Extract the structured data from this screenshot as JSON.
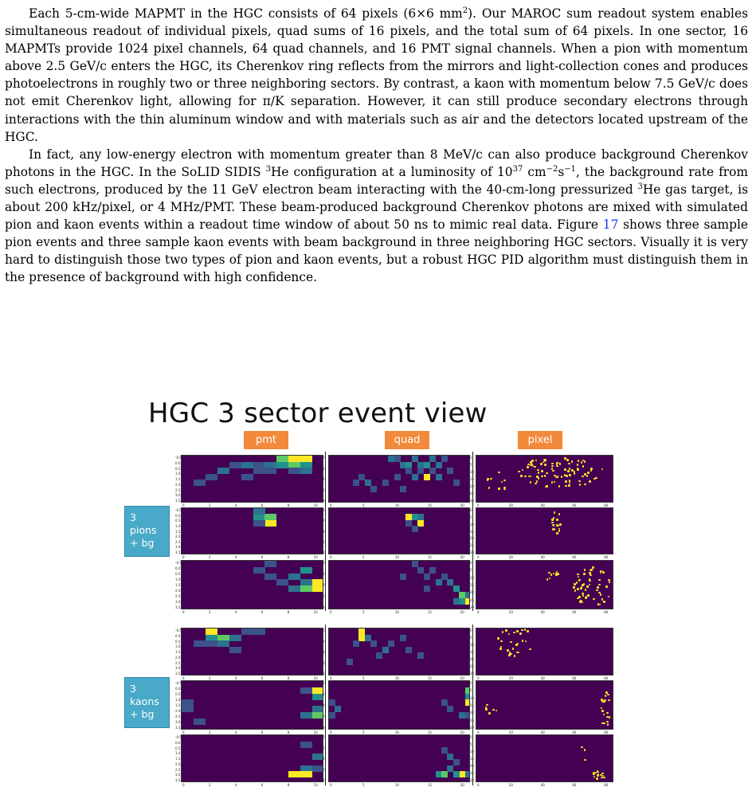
{
  "paragraphs": {
    "p1": {
      "a": "Each 5-cm-wide MAPMT in the HGC consists of 64 pixels (6×6 mm",
      "a_sup": "2",
      "b": "). Our MAROC sum readout system enables simultaneous readout of individual pixels, quad sums of 16 pixels, and the total sum of 64 pixels. In one sector, 16 MAPMTs provide 1024 pixel channels, 64 quad channels, and 16 PMT signal channels. When a pion with momentum above 2.5 GeV/c enters the HGC, its Cherenkov ring reflects from the mirrors and light-collection cones and produces photoelectrons in roughly two or three neighboring sectors. By contrast, a kaon with momentum below 7.5 GeV/c does not emit Cherenkov light, allowing for π/K separation. However, it can still produce secondary electrons through interactions with the thin aluminum window and with materials such as air and the detectors located upstream of the HGC."
    },
    "p2": {
      "a": "In fact, any low-energy electron with momentum greater than 8 MeV/c can also produce background Cherenkov photons in the HGC. In the SoLID SIDIS ",
      "a_sup": "3",
      "b": "He configuration at a luminosity of 10",
      "b_sup": "37",
      "c": " cm",
      "c_sup": "−2",
      "d": "s",
      "d_sup": "−1",
      "e": ", the background rate from such electrons, produced by the 11 GeV electron beam interacting with the 40-cm-long pressurized ",
      "e_sup": "3",
      "f": "He gas target, is about 200 kHz/pixel, or 4 MHz/PMT. These beam-produced background Cherenkov photons are mixed with simulated pion and kaon events within a readout time window of about 50 ns to mimic real data. Figure ",
      "fig_ref": "17",
      "g": " shows three sample pion events and three sample kaon events with beam background in three neighboring HGC sectors. Visually it is very hard to distinguish those two types of pion and kaon events, but a robust HGC PID algorithm must distinguish them in the presence of background with high confidence."
    }
  },
  "figure": {
    "title": "HGC 3 sector event view",
    "columns": [
      "pmt",
      "quad",
      "pixel"
    ],
    "groups": [
      {
        "label_lines": [
          "3",
          "pions",
          "+ bg"
        ]
      },
      {
        "label_lines": [
          "3",
          "kaons",
          "+ bg"
        ]
      }
    ],
    "axis_ticks": {
      "pmt_x": [
        "0",
        "2",
        "4",
        "6",
        "8",
        "10"
      ],
      "quad_x": [
        "0",
        "5",
        "10",
        "15",
        "20"
      ],
      "pixel_x": [
        "0",
        "20",
        "40",
        "60",
        "80"
      ],
      "pmt_y": [
        "-0.5",
        "0.0",
        "0.5",
        "1.0",
        "1.5",
        "2.0",
        "2.5",
        "3.0",
        "3.5"
      ],
      "quad_y": [
        "0",
        "2",
        "4",
        "6",
        "8"
      ],
      "pixel_y": [
        "0",
        "5",
        "10",
        "15",
        "20",
        "25",
        "30"
      ]
    }
  },
  "colors": {
    "background": "#440154",
    "low": "#3b528b",
    "mid": "#21918c",
    "high": "#5ec962",
    "peak": "#fde725",
    "column_tag": "#f28a3c",
    "group_tag": "#49a9c8"
  }
}
